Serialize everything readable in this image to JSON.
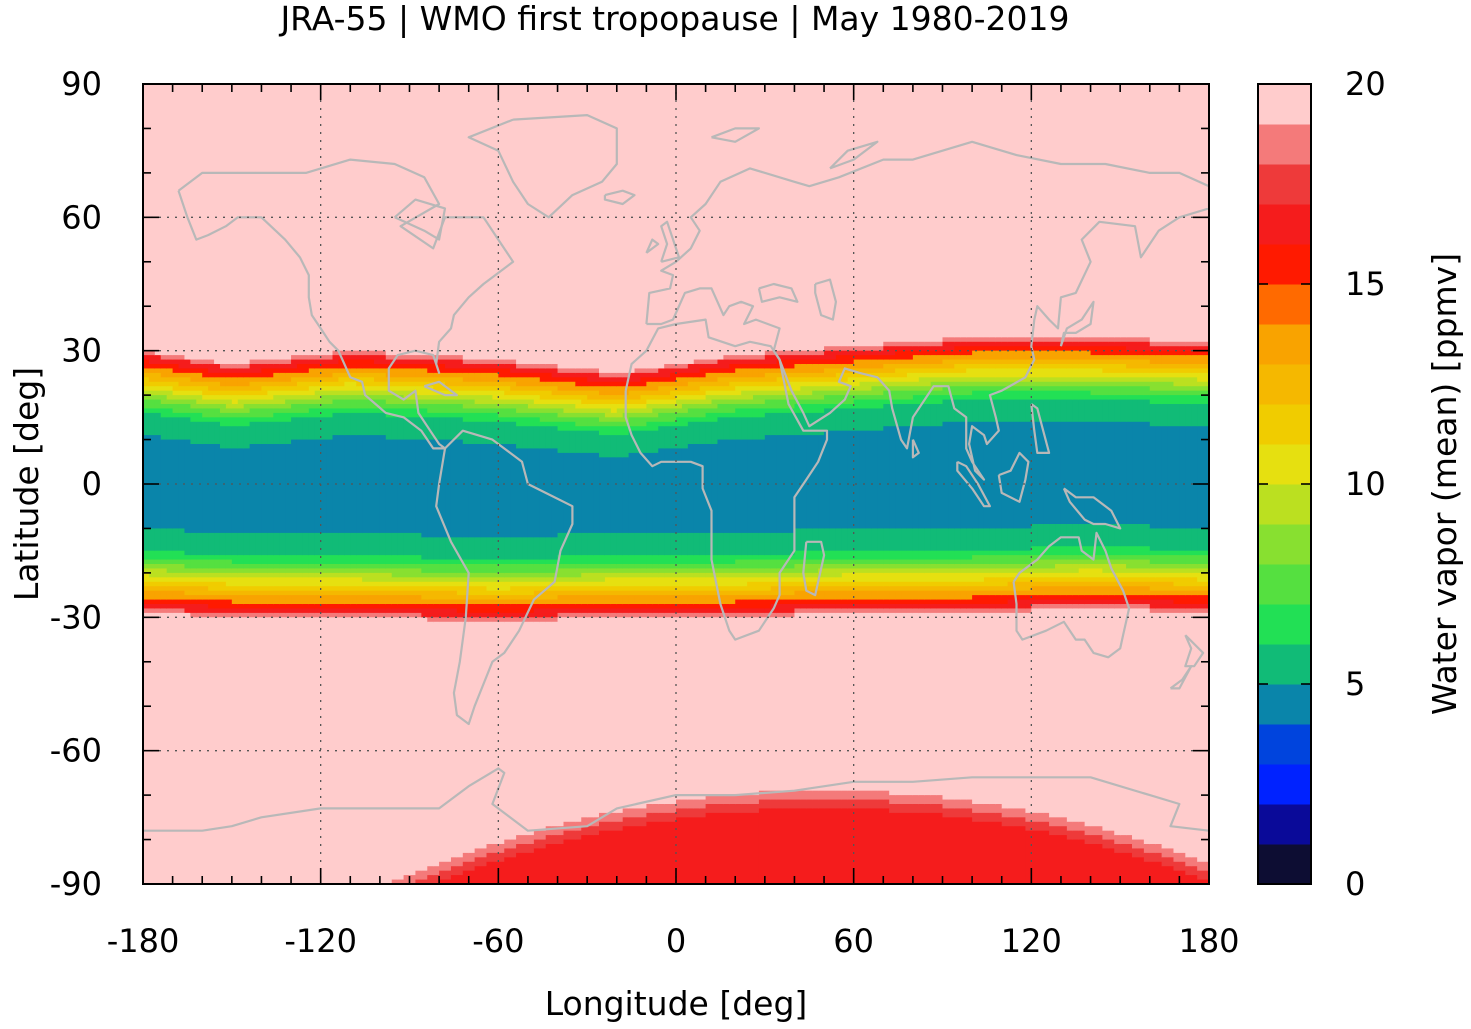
{
  "chart_data": {
    "type": "heatmap",
    "title": "JRA-55 | WMO first tropopause | May 1980-2019",
    "xlabel": "Longitude [deg]",
    "ylabel": "Latitude [deg]",
    "xlim": [
      -180,
      180
    ],
    "ylim": [
      -90,
      90
    ],
    "x_ticks": [
      "-180",
      "-120",
      "-60",
      "0",
      "60",
      "120",
      "180"
    ],
    "y_ticks": [
      "90",
      "60",
      "30",
      "0",
      "-30",
      "-60",
      "-90"
    ],
    "grid": true,
    "colorbar": {
      "label": "Water vapor (mean) [ppmv]",
      "range": [
        0,
        20
      ],
      "ticks": [
        "0",
        "5",
        "10",
        "15",
        "20"
      ],
      "levels": [
        {
          "from": 0,
          "to": 1,
          "color": "#0d0d33"
        },
        {
          "from": 1,
          "to": 2,
          "color": "#0a0a99"
        },
        {
          "from": 2,
          "to": 3,
          "color": "#0022ff"
        },
        {
          "from": 3,
          "to": 4,
          "color": "#0044dd"
        },
        {
          "from": 4,
          "to": 5,
          "color": "#0a85aa"
        },
        {
          "from": 5,
          "to": 6,
          "color": "#11bb77"
        },
        {
          "from": 6,
          "to": 7,
          "color": "#22e055"
        },
        {
          "from": 7,
          "to": 8,
          "color": "#55e040"
        },
        {
          "from": 8,
          "to": 9,
          "color": "#88e030"
        },
        {
          "from": 9,
          "to": 10,
          "color": "#bbe020"
        },
        {
          "from": 10,
          "to": 11,
          "color": "#e6e010"
        },
        {
          "from": 11,
          "to": 12,
          "color": "#f0cc00"
        },
        {
          "from": 12,
          "to": 13,
          "color": "#f5b800"
        },
        {
          "from": 13,
          "to": 14,
          "color": "#f9a300"
        },
        {
          "from": 14,
          "to": 15,
          "color": "#ff6a00"
        },
        {
          "from": 15,
          "to": 16,
          "color": "#ff1a00"
        },
        {
          "from": 16,
          "to": 17,
          "color": "#f51c1c"
        },
        {
          "from": 17,
          "to": 18,
          "color": "#ee3a3a"
        },
        {
          "from": 18,
          "to": 19,
          "color": "#f47a7a"
        },
        {
          "from": 19,
          "to": 20,
          "color": "#ffcccc"
        }
      ]
    },
    "zonal_structure": {
      "description_of_field": "tropical minimum with steep gradients near 30N and 30S",
      "north_edge_lat": {
        "lon": [
          -180,
          -150,
          -110,
          -60,
          -20,
          20,
          60,
          100,
          140,
          180
        ],
        "lat": [
          30,
          27,
          30,
          28,
          25,
          29,
          31,
          33,
          33,
          32
        ]
      },
      "south_edge_lat": {
        "lon": [
          -180,
          -150,
          -110,
          -60,
          -20,
          20,
          60,
          100,
          140,
          180
        ],
        "lat": [
          -29,
          -30,
          -30,
          -31,
          -30,
          -30,
          -29,
          -29,
          -28,
          -29
        ]
      },
      "antarctic_max": {
        "lon_center": 50,
        "lat_top": -69,
        "value": 16
      }
    },
    "overlay": "coastlines (gray)"
  }
}
